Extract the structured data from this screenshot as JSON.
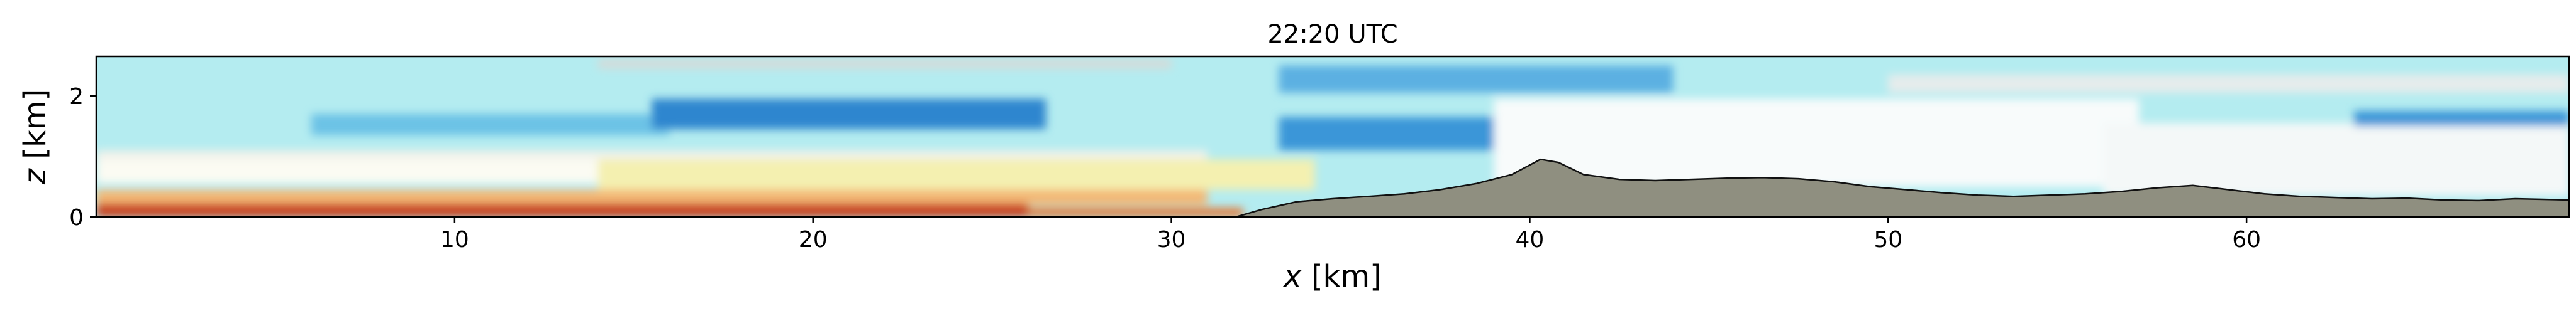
{
  "chart_data": {
    "type": "heatmap",
    "title": "22:20 UTC",
    "xlabel_var": "x",
    "xlabel_unit": " [km]",
    "ylabel_var": "z",
    "ylabel_unit": " [km]",
    "xlim": [
      0,
      69
    ],
    "ylim": [
      0,
      2.65
    ],
    "xticks": [
      10,
      20,
      30,
      40,
      50,
      60
    ],
    "yticks": [
      0,
      2
    ],
    "xtick_labels": [
      "10",
      "20",
      "30",
      "40",
      "50",
      "60"
    ],
    "ytick_labels": [
      "0",
      "2"
    ],
    "grid": false,
    "legend": "none",
    "terrain": {
      "x": [
        0,
        31.8,
        32.5,
        33.5,
        34.5,
        35.5,
        36.5,
        37.5,
        38.5,
        39.5,
        40.3,
        40.8,
        41.5,
        42.5,
        43.5,
        44.5,
        45.5,
        46.5,
        47.5,
        48.5,
        49.5,
        50.5,
        51.5,
        52.5,
        53.5,
        54.5,
        55.5,
        56.5,
        57.5,
        58.5,
        59.5,
        60.5,
        61.5,
        62.5,
        63.5,
        64.5,
        65.5,
        66.5,
        67.5,
        69
      ],
      "z": [
        0,
        0,
        0.12,
        0.25,
        0.3,
        0.34,
        0.38,
        0.45,
        0.55,
        0.7,
        0.95,
        0.9,
        0.7,
        0.62,
        0.6,
        0.62,
        0.64,
        0.65,
        0.63,
        0.58,
        0.5,
        0.45,
        0.4,
        0.36,
        0.34,
        0.36,
        0.38,
        0.42,
        0.48,
        0.52,
        0.45,
        0.38,
        0.34,
        0.32,
        0.3,
        0.31,
        0.28,
        0.27,
        0.3,
        0.28
      ],
      "color": "#8f8f80"
    },
    "regions": [
      {
        "x": [
          0,
          69
        ],
        "z": [
          0,
          2.65
        ],
        "color": "#b4ecf0"
      },
      {
        "x": [
          0,
          31
        ],
        "z": [
          0.95,
          1.1
        ],
        "color": "#f2f2ea"
      },
      {
        "x": [
          0,
          14
        ],
        "z": [
          0.55,
          0.95
        ],
        "color": "#fbfbf3"
      },
      {
        "x": [
          14,
          34
        ],
        "z": [
          0.45,
          0.95
        ],
        "color": "#f4f0b0"
      },
      {
        "x": [
          0,
          31
        ],
        "z": [
          0.2,
          0.45
        ],
        "color": "#f3b775"
      },
      {
        "x": [
          0,
          26
        ],
        "z": [
          0,
          0.22
        ],
        "color": "#c8401e"
      },
      {
        "x": [
          26,
          32
        ],
        "z": [
          0,
          0.15
        ],
        "color": "#e07c3c"
      },
      {
        "x": [
          6,
          16
        ],
        "z": [
          1.35,
          1.7
        ],
        "color": "#6cc2e6"
      },
      {
        "x": [
          15.5,
          26.5
        ],
        "z": [
          1.45,
          1.95
        ],
        "color": "#2f86cf"
      },
      {
        "x": [
          33,
          47
        ],
        "z": [
          1.1,
          1.65
        ],
        "color": "#3a96d8"
      },
      {
        "x": [
          33,
          44
        ],
        "z": [
          2.05,
          2.5
        ],
        "color": "#5bb0e2"
      },
      {
        "x": [
          39,
          57
        ],
        "z": [
          0.5,
          1.95
        ],
        "color": "#f8fbfb"
      },
      {
        "x": [
          56,
          69
        ],
        "z": [
          0.35,
          1.55
        ],
        "color": "#f4f8f8"
      },
      {
        "x": [
          63,
          69
        ],
        "z": [
          1.5,
          1.75
        ],
        "color": "#3a96d8"
      },
      {
        "x": [
          14,
          30
        ],
        "z": [
          2.45,
          2.6
        ],
        "color": "#d6dad8"
      },
      {
        "x": [
          50,
          69
        ],
        "z": [
          2.05,
          2.35
        ],
        "color": "#e6ecec"
      }
    ]
  }
}
